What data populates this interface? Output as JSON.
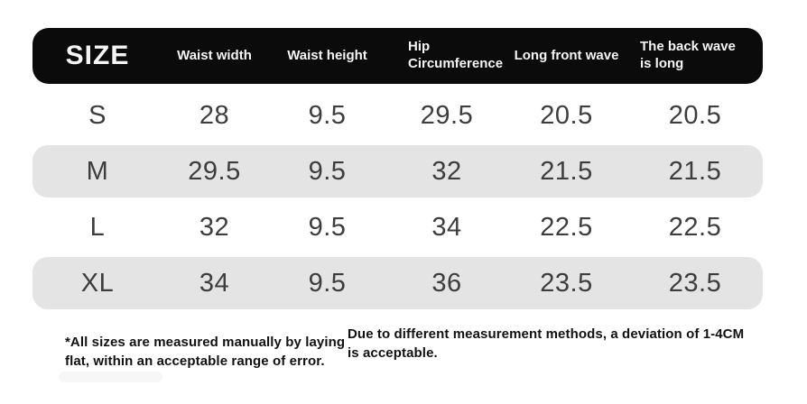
{
  "table": {
    "header": {
      "size": "SIZE",
      "waist_width": "Waist width",
      "waist_height": "Waist height",
      "hip_circumference": "Hip Circumference",
      "long_front_wave": "Long front wave",
      "back_wave": "The back wave is long"
    },
    "rows": [
      {
        "size": "S",
        "values": [
          "28",
          "9.5",
          "29.5",
          "20.5",
          "20.5"
        ]
      },
      {
        "size": "M",
        "values": [
          "29.5",
          "9.5",
          "32",
          "21.5",
          "21.5"
        ]
      },
      {
        "size": "L",
        "values": [
          "32",
          "9.5",
          "34",
          "22.5",
          "22.5"
        ]
      },
      {
        "size": "XL",
        "values": [
          "34",
          "9.5",
          "36",
          "23.5",
          "23.5"
        ]
      }
    ]
  },
  "notes": {
    "left": "*All sizes are measured manually by laying flat, within an acceptable range of error.",
    "right": "Due to different measurement methods, a deviation of 1-4CM is acceptable."
  },
  "colors": {
    "header_bg": "#0b0b0b",
    "header_text": "#f5f5f5",
    "alt_row_bg": "#e4e4e4",
    "data_text": "#3d3d3d",
    "note_text": "#111111",
    "page_bg": "#ffffff"
  }
}
